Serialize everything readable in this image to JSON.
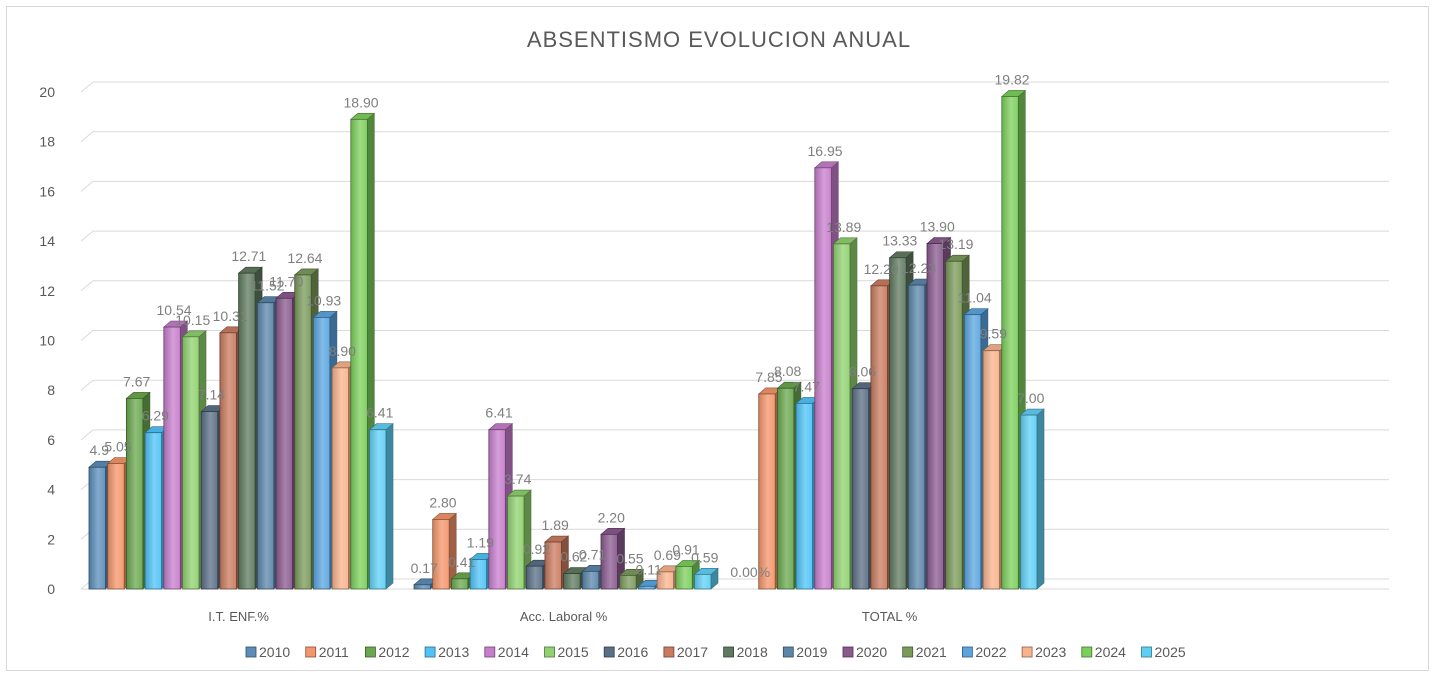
{
  "chart_data": {
    "type": "bar",
    "title": "ABSENTISMO EVOLUCION ANUAL",
    "categories": [
      "I.T. ENF.%",
      "Acc. Laboral %",
      "TOTAL %"
    ],
    "ylim": [
      0,
      20
    ],
    "yticks": [
      "0",
      "2",
      "4",
      "6",
      "8",
      "10",
      "12",
      "14",
      "16",
      "18",
      "20"
    ],
    "grid": true,
    "legend_position": "bottom",
    "series": [
      {
        "name": "2010",
        "color": "#5b8db8",
        "values": [
          4.9,
          0.17,
          null
        ],
        "labels": [
          "4.9",
          "0.17",
          ""
        ]
      },
      {
        "name": "2011",
        "color": "#f4956a",
        "values": [
          5.05,
          2.8,
          7.85
        ],
        "labels": [
          "5.05",
          "2.80",
          "7.85"
        ]
      },
      {
        "name": "2012",
        "color": "#6aa84f",
        "values": [
          7.67,
          0.41,
          8.08
        ],
        "labels": [
          "7.67",
          "0.41",
          "8.08"
        ]
      },
      {
        "name": "2013",
        "color": "#4fc3f7",
        "values": [
          6.29,
          1.19,
          7.47
        ],
        "labels": [
          "6.29",
          "1.19",
          "7.47"
        ]
      },
      {
        "name": "2014",
        "color": "#c77dcc",
        "values": [
          10.54,
          6.41,
          16.95
        ],
        "labels": [
          "10.54",
          "6.41",
          "16.95"
        ]
      },
      {
        "name": "2015",
        "color": "#8fd16e",
        "values": [
          10.15,
          3.74,
          13.89
        ],
        "labels": [
          "10.15",
          "3.74",
          "13.89"
        ]
      },
      {
        "name": "2016",
        "color": "#5a6f85",
        "values": [
          7.14,
          0.92,
          8.06
        ],
        "labels": [
          "7.14",
          "0.92",
          "8.06"
        ]
      },
      {
        "name": "2017",
        "color": "#c97b5f",
        "values": [
          10.31,
          1.89,
          12.2
        ],
        "labels": [
          "10.31",
          "1.89",
          "12.20"
        ]
      },
      {
        "name": "2018",
        "color": "#5f7a5f",
        "values": [
          12.71,
          0.62,
          13.33
        ],
        "labels": [
          "12.71",
          "0.62",
          "13.33"
        ]
      },
      {
        "name": "2019",
        "color": "#5b86aa",
        "values": [
          11.52,
          0.71,
          12.23
        ],
        "labels": [
          "11.52",
          "0.71",
          "12.23"
        ]
      },
      {
        "name": "2020",
        "color": "#8a5a8f",
        "values": [
          11.7,
          2.2,
          13.9
        ],
        "labels": [
          "11.70",
          "2.20",
          "13.90"
        ]
      },
      {
        "name": "2021",
        "color": "#7a9a5a",
        "values": [
          12.64,
          0.55,
          13.19
        ],
        "labels": [
          "12.64",
          "0.55",
          "13.19"
        ]
      },
      {
        "name": "2022",
        "color": "#5aa5e0",
        "values": [
          10.93,
          0.11,
          11.04
        ],
        "labels": [
          "10.93",
          "0.11",
          "11.04"
        ]
      },
      {
        "name": "2023",
        "color": "#f8b38c",
        "values": [
          8.9,
          0.69,
          9.59
        ],
        "labels": [
          "8.90",
          "0.69",
          "9.59"
        ]
      },
      {
        "name": "2024",
        "color": "#7ccf5c",
        "values": [
          18.9,
          0.91,
          19.82
        ],
        "labels": [
          "18.90",
          "0.91",
          "19.82"
        ]
      },
      {
        "name": "2025",
        "color": "#5fd0f5",
        "values": [
          6.41,
          0.59,
          7.0
        ],
        "labels": [
          "6.41",
          "0.59",
          "7.00"
        ]
      }
    ],
    "extra_labels": [
      {
        "category_index": 2,
        "series_index": 0,
        "text": "0.00%"
      }
    ]
  }
}
